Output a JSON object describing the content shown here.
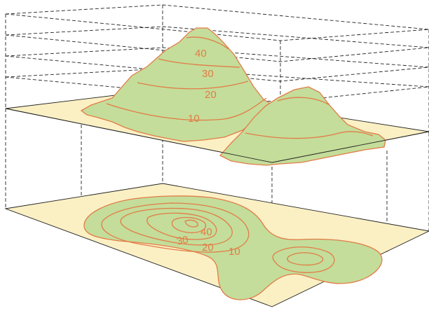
{
  "terrain_view": {
    "contour_labels": [
      "40",
      "30",
      "20",
      "10"
    ]
  },
  "map_view": {
    "contour_labels": [
      "40",
      "30",
      "20",
      "10"
    ]
  },
  "colors": {
    "land": "#c4dd9a",
    "contour": "#e27c47",
    "plane": "#fbf0c4",
    "line": "#222222"
  }
}
